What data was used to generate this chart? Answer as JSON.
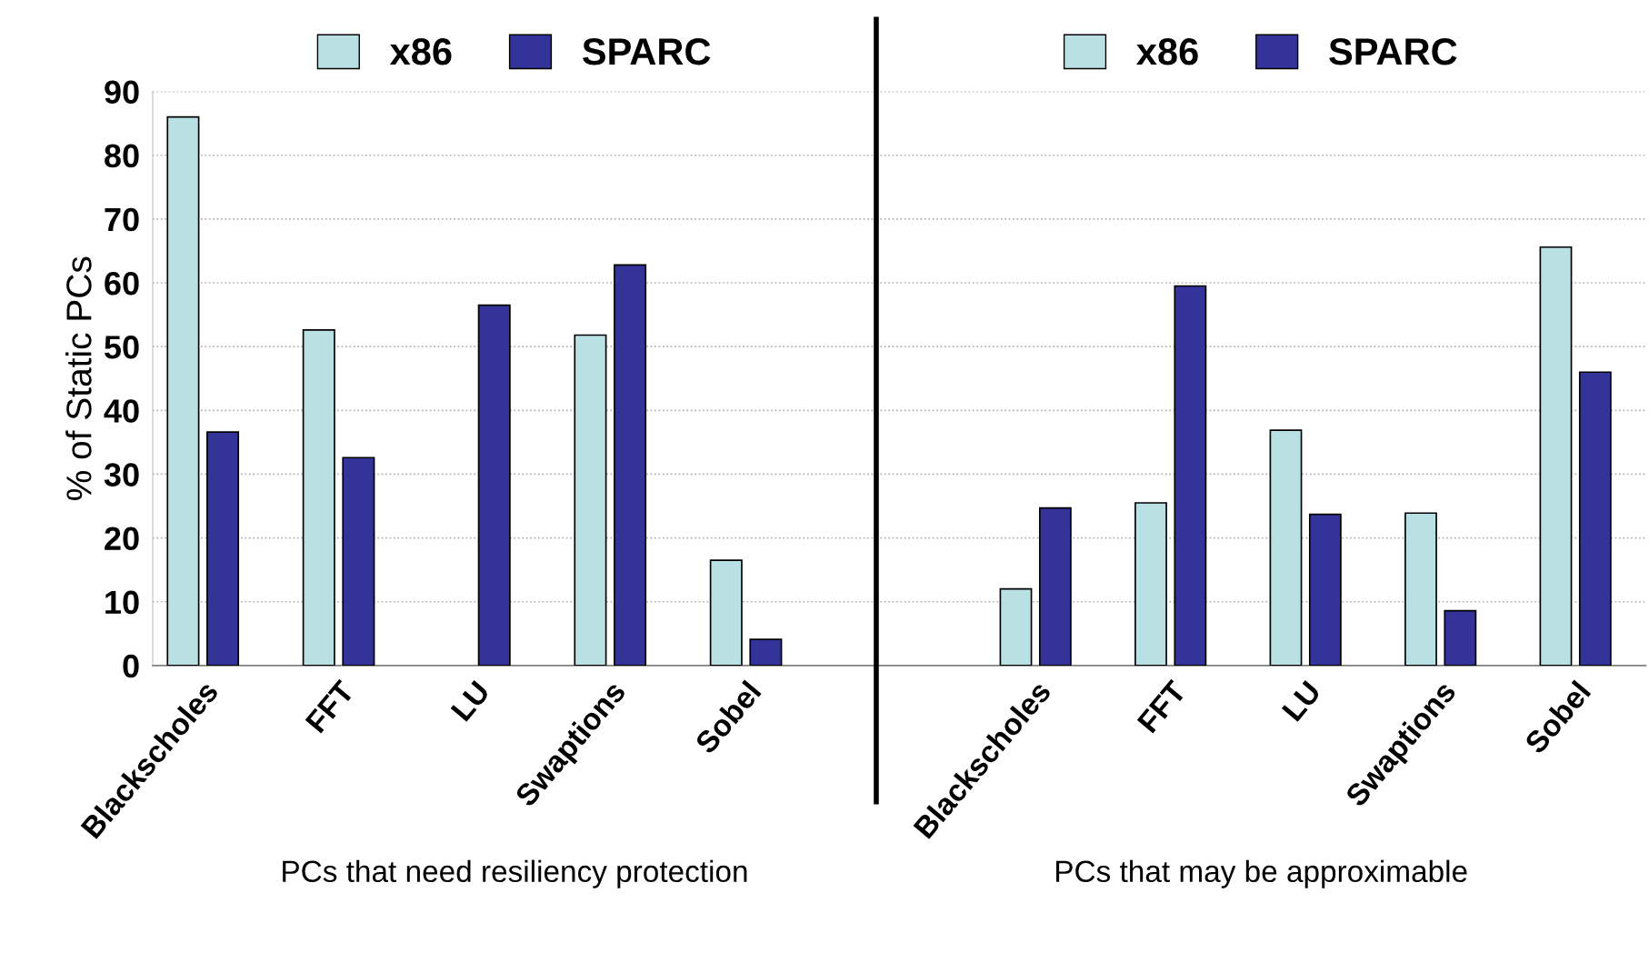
{
  "chart_data": [
    {
      "type": "bar",
      "xlabel": "PCs that need resiliency protection",
      "ylabel": "% of Static PCs",
      "categories": [
        "Blackscholes",
        "FFT",
        "LU",
        "Swaptions",
        "Sobel"
      ],
      "series": [
        {
          "name": "x86",
          "color": "#b9e0e3",
          "values": [
            86.0,
            52.6,
            null,
            51.8,
            16.5
          ]
        },
        {
          "name": "SPARC",
          "color": "#333399",
          "values": [
            36.6,
            32.6,
            56.5,
            62.8,
            4.1
          ]
        }
      ],
      "ylim": [
        0,
        90
      ],
      "yticks": [
        0,
        10,
        20,
        30,
        40,
        50,
        60,
        70,
        80,
        90
      ],
      "grid": "y",
      "legend": "top"
    },
    {
      "type": "bar",
      "xlabel": "PCs that may be approximable",
      "categories": [
        "Blackscholes",
        "FFT",
        "LU",
        "Swaptions",
        "Sobel"
      ],
      "series": [
        {
          "name": "x86",
          "color": "#b9e0e3",
          "values": [
            12.0,
            25.5,
            36.9,
            23.9,
            65.6
          ]
        },
        {
          "name": "SPARC",
          "color": "#333399",
          "values": [
            24.7,
            59.5,
            23.7,
            8.6,
            46.0
          ]
        }
      ],
      "ylim": [
        0,
        90
      ],
      "yticks": [
        0,
        10,
        20,
        30,
        40,
        50,
        60,
        70,
        80,
        90
      ],
      "grid": "y",
      "legend": "top",
      "tick_labels": "x"
    }
  ]
}
